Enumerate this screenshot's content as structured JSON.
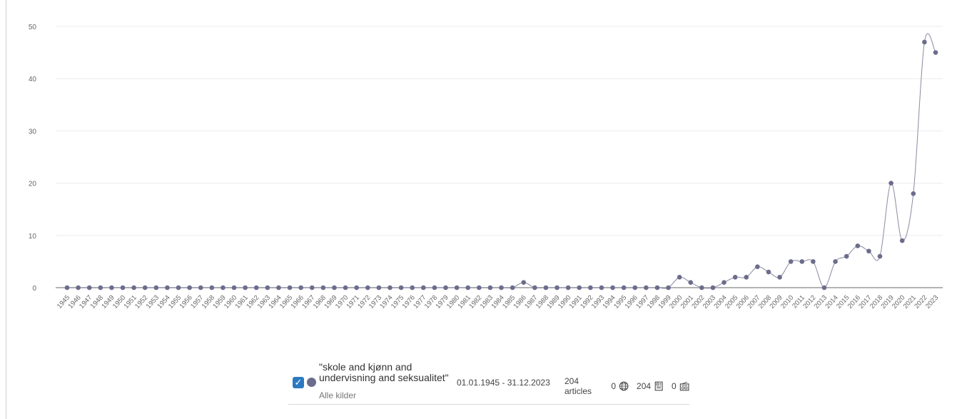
{
  "chart_data": {
    "type": "line",
    "title": "",
    "xlabel": "",
    "ylabel": "",
    "ylim": [
      0,
      50
    ],
    "yticks": [
      0,
      10,
      20,
      30,
      40,
      50
    ],
    "grid": true,
    "legend": "bottom-center",
    "x": [
      "1945",
      "1946",
      "1947",
      "1948",
      "1949",
      "1950",
      "1951",
      "1952",
      "1953",
      "1954",
      "1955",
      "1956",
      "1957",
      "1958",
      "1959",
      "1960",
      "1961",
      "1962",
      "1963",
      "1964",
      "1965",
      "1966",
      "1967",
      "1968",
      "1969",
      "1970",
      "1971",
      "1972",
      "1973",
      "1974",
      "1975",
      "1976",
      "1977",
      "1978",
      "1979",
      "1980",
      "1981",
      "1982",
      "1983",
      "1984",
      "1985",
      "1986",
      "1987",
      "1988",
      "1989",
      "1990",
      "1991",
      "1992",
      "1993",
      "1994",
      "1995",
      "1996",
      "1997",
      "1998",
      "1999",
      "2000",
      "2001",
      "2002",
      "2003",
      "2004",
      "2005",
      "2006",
      "2007",
      "2008",
      "2009",
      "2010",
      "2011",
      "2012",
      "2013",
      "2014",
      "2015",
      "2016",
      "2017",
      "2018",
      "2019",
      "2020",
      "2021",
      "2022",
      "2023"
    ],
    "series": [
      {
        "name": "\"skole and kjønn and undervisning and seksualitet\"",
        "color": "#6c6c8c",
        "values": [
          0,
          0,
          0,
          0,
          0,
          0,
          0,
          0,
          0,
          0,
          0,
          0,
          0,
          0,
          0,
          0,
          0,
          0,
          0,
          0,
          0,
          0,
          0,
          0,
          0,
          0,
          0,
          0,
          0,
          0,
          0,
          0,
          0,
          0,
          0,
          0,
          0,
          0,
          0,
          0,
          0,
          1,
          0,
          0,
          0,
          0,
          0,
          0,
          0,
          0,
          0,
          0,
          0,
          0,
          0,
          2,
          1,
          0,
          0,
          1,
          2,
          2,
          4,
          3,
          2,
          5,
          5,
          5,
          0,
          5,
          6,
          8,
          7,
          6,
          20,
          9,
          18,
          47,
          45
        ]
      }
    ]
  },
  "legend": {
    "query": "\"skole and kjønn and undervisning and seksualitet\"",
    "source": "Alle kilder",
    "dates": "01.01.1945 - 31.12.2023",
    "articles": "204 articles",
    "web_count": "0",
    "print_count": "204",
    "radio_count": "0",
    "check_color": "#2b79c2"
  }
}
